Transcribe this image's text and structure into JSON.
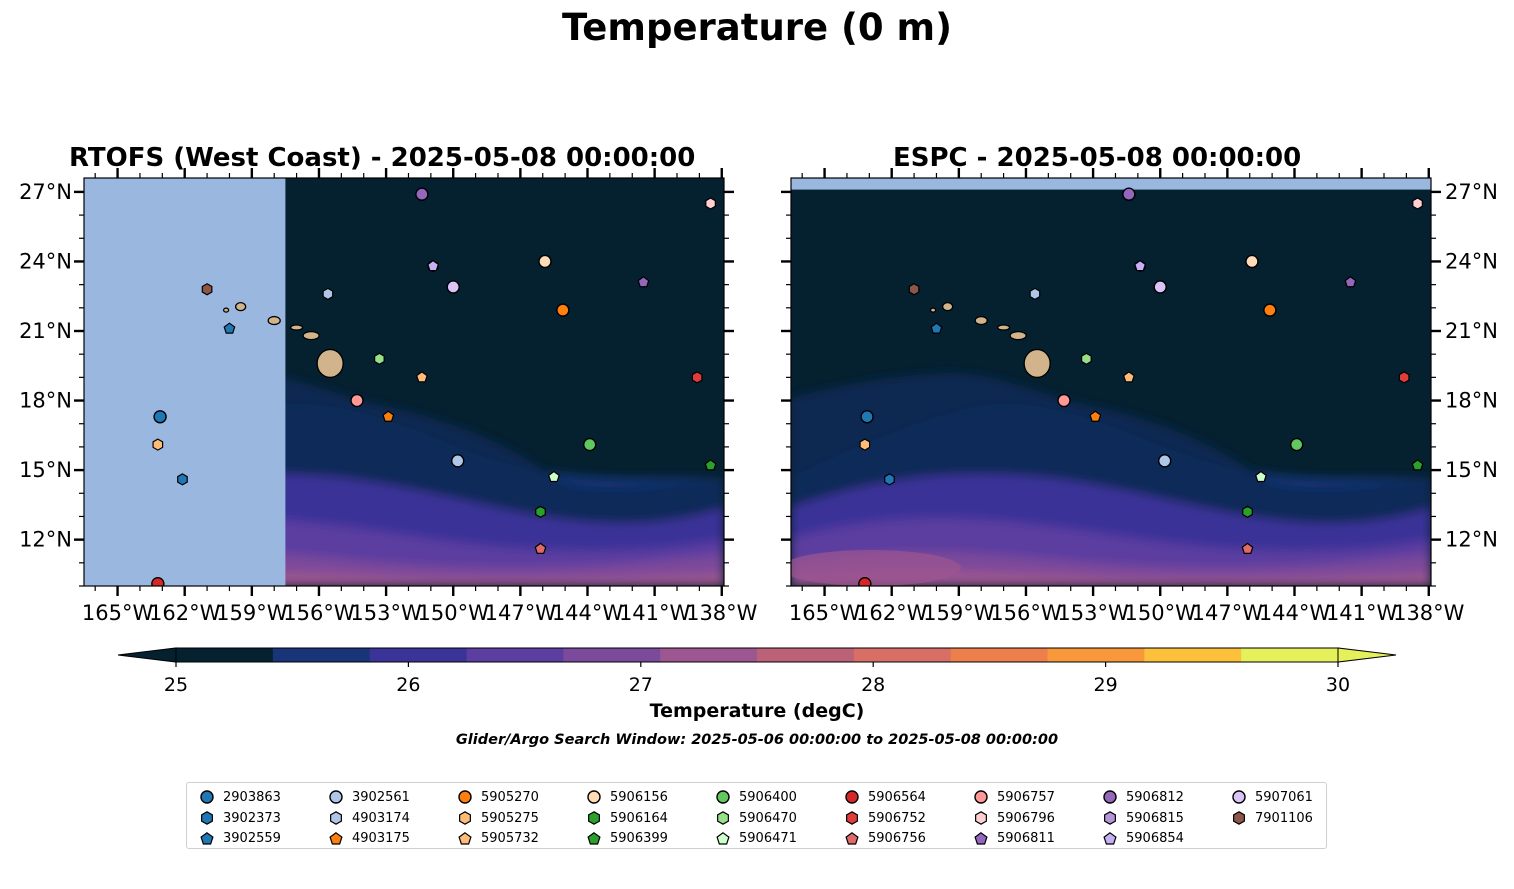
{
  "title": "Temperature (0 m)",
  "panels": [
    {
      "title": "RTOFS (West Coast) - 2025-05-08 00:00:00",
      "coverage_west_lon": -157.5
    },
    {
      "title": "ESPC - 2025-05-08 00:00:00",
      "coverage_north_lat": 27.1
    }
  ],
  "map": {
    "lon_range": [
      -166.5,
      -137.9
    ],
    "lat_range": [
      10.0,
      27.6
    ],
    "x_ticks": [
      -165,
      -162,
      -159,
      -156,
      -153,
      -150,
      -147,
      -144,
      -141,
      -138
    ],
    "x_tick_labels": [
      "165°W",
      "162°W",
      "159°W",
      "156°W",
      "153°W",
      "150°W",
      "147°W",
      "144°W",
      "141°W",
      "138°W"
    ],
    "y_ticks": [
      12,
      15,
      18,
      21,
      24,
      27
    ],
    "y_tick_labels": [
      "12°N",
      "15°N",
      "18°N",
      "21°N",
      "24°N",
      "27°N"
    ]
  },
  "colorbar": {
    "label": "Temperature (degC)",
    "ticks": [
      "25",
      "26",
      "27",
      "28",
      "29",
      "30"
    ],
    "min": 25,
    "max": 30,
    "step": 0.5,
    "colors": [
      "#05202f",
      "#193478",
      "#3a3398",
      "#5b3ea0",
      "#7c4a9a",
      "#9c5690",
      "#bc6278",
      "#d86f66",
      "#ec7f4c",
      "#f9983a",
      "#fcc03a",
      "#e5f05a"
    ],
    "under_color": "#05202f",
    "over_color": "#e5f05a",
    "extend": "both"
  },
  "search_window": "Glider/Argo Search Window: 2025-05-06 00:00:00 to 2025-05-08 00:00:00",
  "land_color": "#d2b48c",
  "ocean_nodata_color": "#9ab7e0",
  "legend": [
    {
      "id": "2903863",
      "marker": "circle",
      "color": "#1f77b4",
      "lon": -163.1,
      "lat": 17.3
    },
    {
      "id": "3902373",
      "marker": "hexagon",
      "color": "#1f77b4",
      "lon": -162.1,
      "lat": 14.6
    },
    {
      "id": "3902559",
      "marker": "pentagon",
      "color": "#1f77b4",
      "lon": -160.0,
      "lat": 21.1
    },
    {
      "id": "3902561",
      "marker": "circle",
      "color": "#aec7e8",
      "lon": -149.8,
      "lat": 15.4
    },
    {
      "id": "4903174",
      "marker": "hexagon",
      "color": "#aec7e8",
      "lon": -155.6,
      "lat": 22.6
    },
    {
      "id": "4903175",
      "marker": "pentagon",
      "color": "#ff7f0e",
      "lon": -152.9,
      "lat": 17.3
    },
    {
      "id": "5905270",
      "marker": "circle",
      "color": "#ff7f0e",
      "lon": -145.1,
      "lat": 21.9
    },
    {
      "id": "5905275",
      "marker": "hexagon",
      "color": "#ffbb78",
      "lon": -163.2,
      "lat": 16.1
    },
    {
      "id": "5905732",
      "marker": "pentagon",
      "color": "#ffbb78",
      "lon": -151.4,
      "lat": 19.0
    },
    {
      "id": "5906156",
      "marker": "circle",
      "color": "#ffdbb8",
      "lon": -145.9,
      "lat": 24.0
    },
    {
      "id": "5906164",
      "marker": "hexagon",
      "color": "#2ca02c",
      "lon": -146.1,
      "lat": 13.2
    },
    {
      "id": "5906399",
      "marker": "pentagon",
      "color": "#2ca02c",
      "lon": -138.5,
      "lat": 15.2
    },
    {
      "id": "5906400",
      "marker": "circle",
      "color": "#61c761",
      "lon": -143.9,
      "lat": 16.1
    },
    {
      "id": "5906470",
      "marker": "hexagon",
      "color": "#98df8a",
      "lon": -153.3,
      "lat": 19.8
    },
    {
      "id": "5906471",
      "marker": "pentagon",
      "color": "#ccffcc",
      "lon": -145.5,
      "lat": 14.7
    },
    {
      "id": "5906564",
      "marker": "circle",
      "color": "#d62728",
      "lon": -163.2,
      "lat": 10.1
    },
    {
      "id": "5906752",
      "marker": "hexagon",
      "color": "#e03c3c",
      "lon": -139.1,
      "lat": 19.0
    },
    {
      "id": "5906756",
      "marker": "pentagon",
      "color": "#e06a6a",
      "lon": -146.1,
      "lat": 11.6
    },
    {
      "id": "5906757",
      "marker": "circle",
      "color": "#ff9896",
      "lon": -154.3,
      "lat": 18.0
    },
    {
      "id": "5906796",
      "marker": "hexagon",
      "color": "#ffd0d0",
      "lon": -138.5,
      "lat": 26.5
    },
    {
      "id": "5906811",
      "marker": "pentagon",
      "color": "#9467bd",
      "lon": -141.5,
      "lat": 23.1
    },
    {
      "id": "5906812",
      "marker": "circle",
      "color": "#9467bd",
      "lon": -151.4,
      "lat": 26.9
    },
    {
      "id": "5906815",
      "marker": "hexagon",
      "color": "#b594d8",
      "lon": -150.9,
      "lat": 23.8
    },
    {
      "id": "5906854",
      "marker": "pentagon",
      "color": "#c5b0f5",
      "lon": -150.9,
      "lat": 23.8
    },
    {
      "id": "5907061",
      "marker": "circle",
      "color": "#d9c3f7",
      "lon": -150.0,
      "lat": 22.9
    },
    {
      "id": "7901106",
      "marker": "hexagon",
      "color": "#8c564b",
      "lon": -161.0,
      "lat": 22.8
    }
  ]
}
